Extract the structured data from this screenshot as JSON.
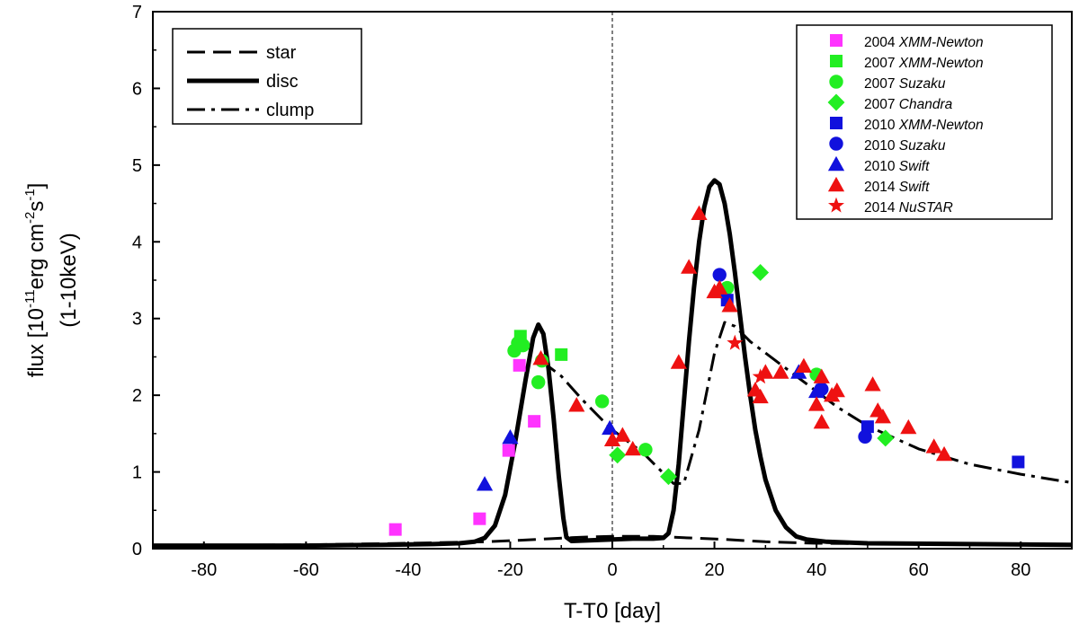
{
  "chart_data": {
    "type": "scatter",
    "xlabel": "T-T0 [day]",
    "ylabel": {
      "line1_prefix": "flux [10",
      "line1_exp1": "-11",
      "line1_mid": "erg cm",
      "line1_exp2": "-2",
      "line1_s": "s",
      "line1_exp3": "-1",
      "line1_suffix": "]",
      "line2": "(1-10keV)"
    },
    "xlim": [
      -90,
      90
    ],
    "ylim": [
      0,
      7
    ],
    "xticks": [
      -80,
      -60,
      -40,
      -20,
      0,
      20,
      40,
      60,
      80
    ],
    "yticks": [
      0,
      1,
      2,
      3,
      4,
      5,
      6,
      7
    ],
    "xtick_labels": [
      "-80",
      "-60",
      "-40",
      "-20",
      "0",
      "20",
      "40",
      "60",
      "80"
    ],
    "ytick_labels": [
      "0",
      "1",
      "2",
      "3",
      "4",
      "5",
      "6",
      "7"
    ],
    "vline_x": 0,
    "model_legend": [
      {
        "label": "star",
        "style": "dash"
      },
      {
        "label": "disc",
        "style": "solid"
      },
      {
        "label": "clump",
        "style": "dashdot"
      }
    ],
    "models": {
      "star": [
        [
          -90,
          0.04
        ],
        [
          -60,
          0.05
        ],
        [
          -40,
          0.07
        ],
        [
          -25,
          0.09
        ],
        [
          -18,
          0.11
        ],
        [
          -12,
          0.13
        ],
        [
          -6,
          0.15
        ],
        [
          0,
          0.16
        ],
        [
          8,
          0.16
        ],
        [
          15,
          0.14
        ],
        [
          22,
          0.12
        ],
        [
          30,
          0.09
        ],
        [
          40,
          0.07
        ],
        [
          60,
          0.06
        ],
        [
          90,
          0.05
        ]
      ],
      "disc": [
        [
          -90,
          0.04
        ],
        [
          -60,
          0.04
        ],
        [
          -45,
          0.05
        ],
        [
          -35,
          0.06
        ],
        [
          -30,
          0.07
        ],
        [
          -27,
          0.09
        ],
        [
          -25,
          0.14
        ],
        [
          -23,
          0.3
        ],
        [
          -21,
          0.7
        ],
        [
          -19,
          1.4
        ],
        [
          -17,
          2.2
        ],
        [
          -15.5,
          2.75
        ],
        [
          -14.5,
          2.92
        ],
        [
          -13.5,
          2.8
        ],
        [
          -12.5,
          2.35
        ],
        [
          -11.5,
          1.7
        ],
        [
          -10.5,
          0.95
        ],
        [
          -9.6,
          0.4
        ],
        [
          -9,
          0.15
        ],
        [
          -8,
          0.1
        ],
        [
          -4,
          0.11
        ],
        [
          0,
          0.12
        ],
        [
          4,
          0.13
        ],
        [
          8,
          0.13
        ],
        [
          10,
          0.14
        ],
        [
          11,
          0.2
        ],
        [
          12,
          0.5
        ],
        [
          13,
          1.1
        ],
        [
          14,
          1.9
        ],
        [
          15,
          2.7
        ],
        [
          16,
          3.4
        ],
        [
          17,
          4.0
        ],
        [
          18,
          4.45
        ],
        [
          19,
          4.72
        ],
        [
          20,
          4.8
        ],
        [
          21,
          4.75
        ],
        [
          22,
          4.5
        ],
        [
          23,
          4.1
        ],
        [
          24,
          3.6
        ],
        [
          25,
          3.05
        ],
        [
          26,
          2.5
        ],
        [
          27,
          2.0
        ],
        [
          28,
          1.55
        ],
        [
          29,
          1.2
        ],
        [
          30,
          0.9
        ],
        [
          32,
          0.5
        ],
        [
          34,
          0.28
        ],
        [
          36,
          0.16
        ],
        [
          38,
          0.12
        ],
        [
          42,
          0.09
        ],
        [
          50,
          0.07
        ],
        [
          70,
          0.06
        ],
        [
          90,
          0.05
        ]
      ],
      "clump": [
        [
          -14,
          2.45
        ],
        [
          -10,
          2.25
        ],
        [
          -6,
          1.95
        ],
        [
          -2,
          1.68
        ],
        [
          0,
          1.55
        ],
        [
          3,
          1.4
        ],
        [
          6,
          1.25
        ],
        [
          9,
          1.05
        ],
        [
          12,
          0.85
        ],
        [
          14,
          0.85
        ],
        [
          17,
          1.55
        ],
        [
          20,
          2.55
        ],
        [
          22,
          2.95
        ],
        [
          24,
          2.9
        ],
        [
          27,
          2.7
        ],
        [
          32,
          2.45
        ],
        [
          38,
          2.15
        ],
        [
          44,
          1.85
        ],
        [
          50,
          1.6
        ],
        [
          60,
          1.3
        ],
        [
          70,
          1.1
        ],
        [
          80,
          0.97
        ],
        [
          90,
          0.86
        ]
      ]
    },
    "series": [
      {
        "name": "2004",
        "instrument": "XMM-Newton",
        "marker": "square",
        "color": "#ff33ff",
        "points": [
          [
            -42.5,
            0.25
          ],
          [
            -26,
            0.39
          ],
          [
            -20.3,
            1.28
          ],
          [
            -18.2,
            2.39
          ],
          [
            -15.3,
            1.66
          ]
        ]
      },
      {
        "name": "2007",
        "instrument": "XMM-Newton",
        "marker": "square",
        "color": "#22ee22",
        "points": [
          [
            -18,
            2.77
          ],
          [
            -10,
            2.53
          ]
        ]
      },
      {
        "name": "2007",
        "instrument": "Suzaku",
        "marker": "circle",
        "color": "#22ee22",
        "points": [
          [
            -19.2,
            2.58
          ],
          [
            -18.5,
            2.68
          ],
          [
            -17.5,
            2.65
          ],
          [
            -14.5,
            2.17
          ],
          [
            -13.8,
            2.45
          ],
          [
            -2,
            1.92
          ],
          [
            6.5,
            1.29
          ],
          [
            40,
            2.27
          ],
          [
            21.5,
            3.35
          ],
          [
            22.5,
            3.4
          ]
        ]
      },
      {
        "name": "2007",
        "instrument": "Chandra",
        "marker": "diamond",
        "color": "#22ee22",
        "points": [
          [
            1,
            1.22
          ],
          [
            11,
            0.94
          ],
          [
            29,
            3.6
          ],
          [
            53.5,
            1.44
          ]
        ]
      },
      {
        "name": "2010",
        "instrument": "XMM-Newton",
        "marker": "square",
        "color": "#1111dd",
        "points": [
          [
            22.5,
            3.24
          ],
          [
            50,
            1.59
          ],
          [
            79.5,
            1.13
          ]
        ]
      },
      {
        "name": "2010",
        "instrument": "Suzaku",
        "marker": "circle",
        "color": "#1111dd",
        "points": [
          [
            21,
            3.57
          ],
          [
            41,
            2.08
          ],
          [
            49.5,
            1.46
          ]
        ]
      },
      {
        "name": "2010",
        "instrument": "Swift",
        "marker": "triangle",
        "color": "#1111dd",
        "points": [
          [
            -25,
            0.84
          ],
          [
            -20,
            1.45
          ],
          [
            -0.5,
            1.57
          ],
          [
            36.5,
            2.3
          ],
          [
            40,
            2.05
          ]
        ]
      },
      {
        "name": "2014",
        "instrument": "Swift",
        "marker": "triangle",
        "color": "#ee1111",
        "points": [
          [
            -14,
            2.48
          ],
          [
            -7,
            1.87
          ],
          [
            0,
            1.42
          ],
          [
            2,
            1.48
          ],
          [
            4,
            1.3
          ],
          [
            13,
            2.43
          ],
          [
            15,
            3.67
          ],
          [
            17,
            4.37
          ],
          [
            20,
            3.35
          ],
          [
            21,
            3.4
          ],
          [
            23,
            3.17
          ],
          [
            28,
            2.07
          ],
          [
            29,
            1.98
          ],
          [
            33,
            2.3
          ],
          [
            37.5,
            2.38
          ],
          [
            40,
            1.88
          ],
          [
            41,
            1.65
          ],
          [
            41,
            2.24
          ],
          [
            43,
            2.0
          ],
          [
            44,
            2.06
          ],
          [
            51,
            2.14
          ],
          [
            52,
            1.8
          ],
          [
            53,
            1.72
          ],
          [
            58,
            1.58
          ],
          [
            63,
            1.33
          ],
          [
            65,
            1.23
          ],
          [
            30,
            2.3
          ]
        ]
      },
      {
        "name": "2014",
        "instrument": "NuSTAR",
        "marker": "star",
        "color": "#ee1111",
        "points": [
          [
            24,
            2.68
          ],
          [
            29,
            2.24
          ]
        ]
      }
    ]
  }
}
